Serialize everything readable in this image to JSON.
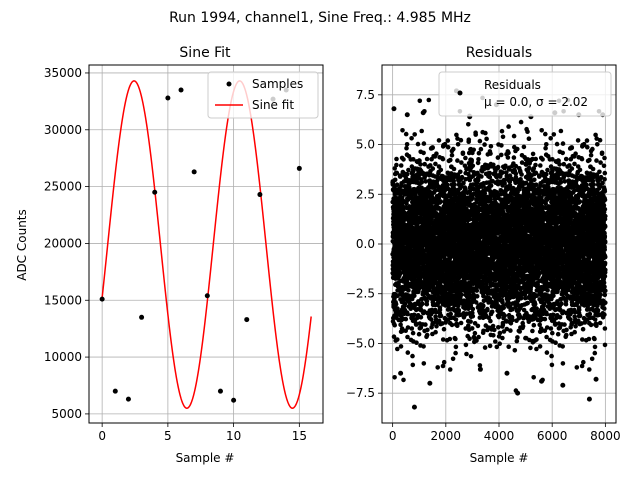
{
  "figure_title": "Run 1994, channel1, Sine Freq.: 4.985 MHz",
  "chart_data": [
    {
      "type": "line",
      "title": "Sine Fit",
      "xlabel": "Sample #",
      "ylabel": "ADC Counts",
      "xlim": [
        -1.0,
        16.8
      ],
      "ylim": [
        4200,
        35700
      ],
      "xticks": [
        0,
        5,
        10,
        15
      ],
      "yticks": [
        5000,
        10000,
        15000,
        20000,
        25000,
        30000,
        35000
      ],
      "grid": true,
      "legend_position": "upper right",
      "series": [
        {
          "name": "Samples",
          "style": "markers",
          "color": "#000000",
          "x": [
            0,
            1,
            2,
            3,
            4,
            5,
            6,
            7,
            8,
            9,
            10,
            11,
            12,
            13,
            14,
            15
          ],
          "y": [
            15100,
            7000,
            6300,
            13500,
            24500,
            32800,
            33500,
            26300,
            15400,
            7000,
            6200,
            13300,
            24300,
            32700,
            33500,
            26600
          ]
        },
        {
          "name": "Sine fit",
          "style": "line",
          "color": "#ff0000",
          "model": {
            "amplitude": 14400,
            "offset": 19900,
            "period_samples": 8.03,
            "phase_rad": -0.33
          },
          "x_range": [
            0,
            15.9
          ]
        }
      ]
    },
    {
      "type": "scatter",
      "title": "Residuals",
      "xlabel": "Sample #",
      "ylabel": "",
      "xlim": [
        -400,
        8400
      ],
      "ylim": [
        -9.0,
        9.0
      ],
      "xticks": [
        0,
        2000,
        4000,
        6000,
        8000
      ],
      "yticks": [
        -7.5,
        -5.0,
        -2.5,
        0.0,
        2.5,
        5.0,
        7.5
      ],
      "grid": true,
      "legend_position": "upper right",
      "legend_label": "Residuals",
      "legend_stats": "μ = 0.0, σ = 2.02",
      "series": [
        {
          "name": "Residuals",
          "style": "markers",
          "color": "#000000",
          "n_points": 8000,
          "mean": 0.0,
          "std": 2.02,
          "x": [
            50,
            550,
            820,
            1400,
            2400,
            3300,
            3900,
            4700,
            5600,
            6400,
            7400,
            7900,
            300,
            1150,
            2900,
            4300,
            5200,
            6100,
            7000,
            7650
          ],
          "y": [
            6.8,
            6.5,
            -8.2,
            -7.0,
            7.7,
            -6.3,
            7.0,
            -7.5,
            -6.9,
            -7.1,
            -7.8,
            6.5,
            -6.5,
            6.6,
            6.4,
            -6.5,
            6.4,
            6.6,
            6.5,
            -6.8
          ]
        }
      ]
    }
  ]
}
